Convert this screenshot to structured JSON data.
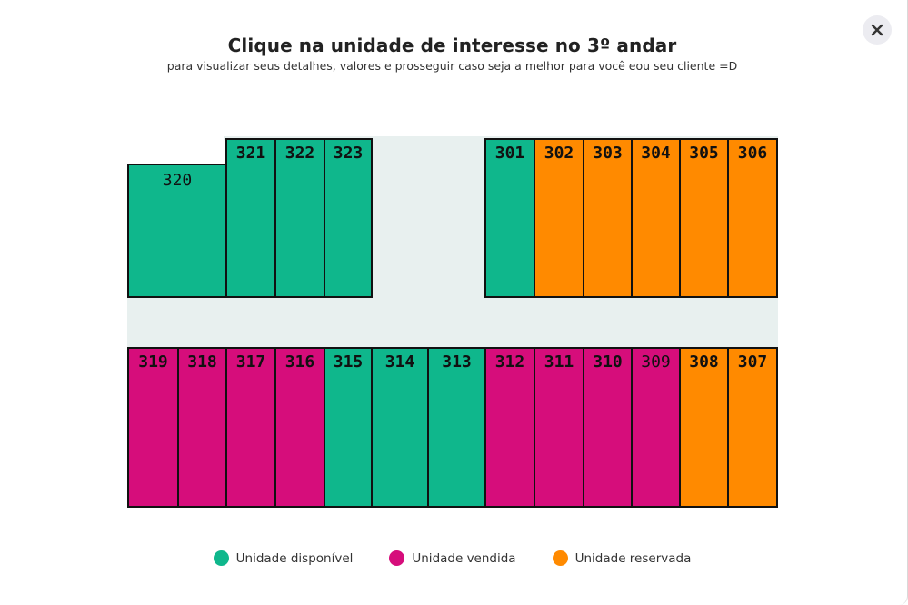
{
  "header": {
    "title": "Clique na unidade de interesse no 3º andar",
    "subtitle": "para visualizar seus detalhes, valores e prosseguir caso seja a melhor para você eou seu cliente =D"
  },
  "colors": {
    "available": "#0fb78c",
    "sold": "#d60d7b",
    "reserved": "#ff8a00",
    "corridor": "#e8f0ef"
  },
  "units": {
    "u320": "320",
    "u321": "321",
    "u322": "322",
    "u323": "323",
    "u301": "301",
    "u302": "302",
    "u303": "303",
    "u304": "304",
    "u305": "305",
    "u306": "306",
    "u319": "319",
    "u318": "318",
    "u317": "317",
    "u316": "316",
    "u315": "315",
    "u314": "314",
    "u313": "313",
    "u312": "312",
    "u311": "311",
    "u310": "310",
    "u309": "309",
    "u308": "308",
    "u307": "307"
  },
  "unit_status": {
    "320": "available",
    "321": "available",
    "322": "available",
    "323": "available",
    "301": "available",
    "302": "reserved",
    "303": "reserved",
    "304": "reserved",
    "305": "reserved",
    "306": "reserved",
    "319": "sold",
    "318": "sold",
    "317": "sold",
    "316": "sold",
    "315": "available",
    "314": "available",
    "313": "available",
    "312": "sold",
    "311": "sold",
    "310": "sold",
    "309": "sold",
    "308": "reserved",
    "307": "reserved"
  },
  "legend": {
    "available": "Unidade disponível",
    "sold": "Unidade vendida",
    "reserved": "Unidade reservada"
  },
  "icons": {
    "close": "close-icon"
  }
}
